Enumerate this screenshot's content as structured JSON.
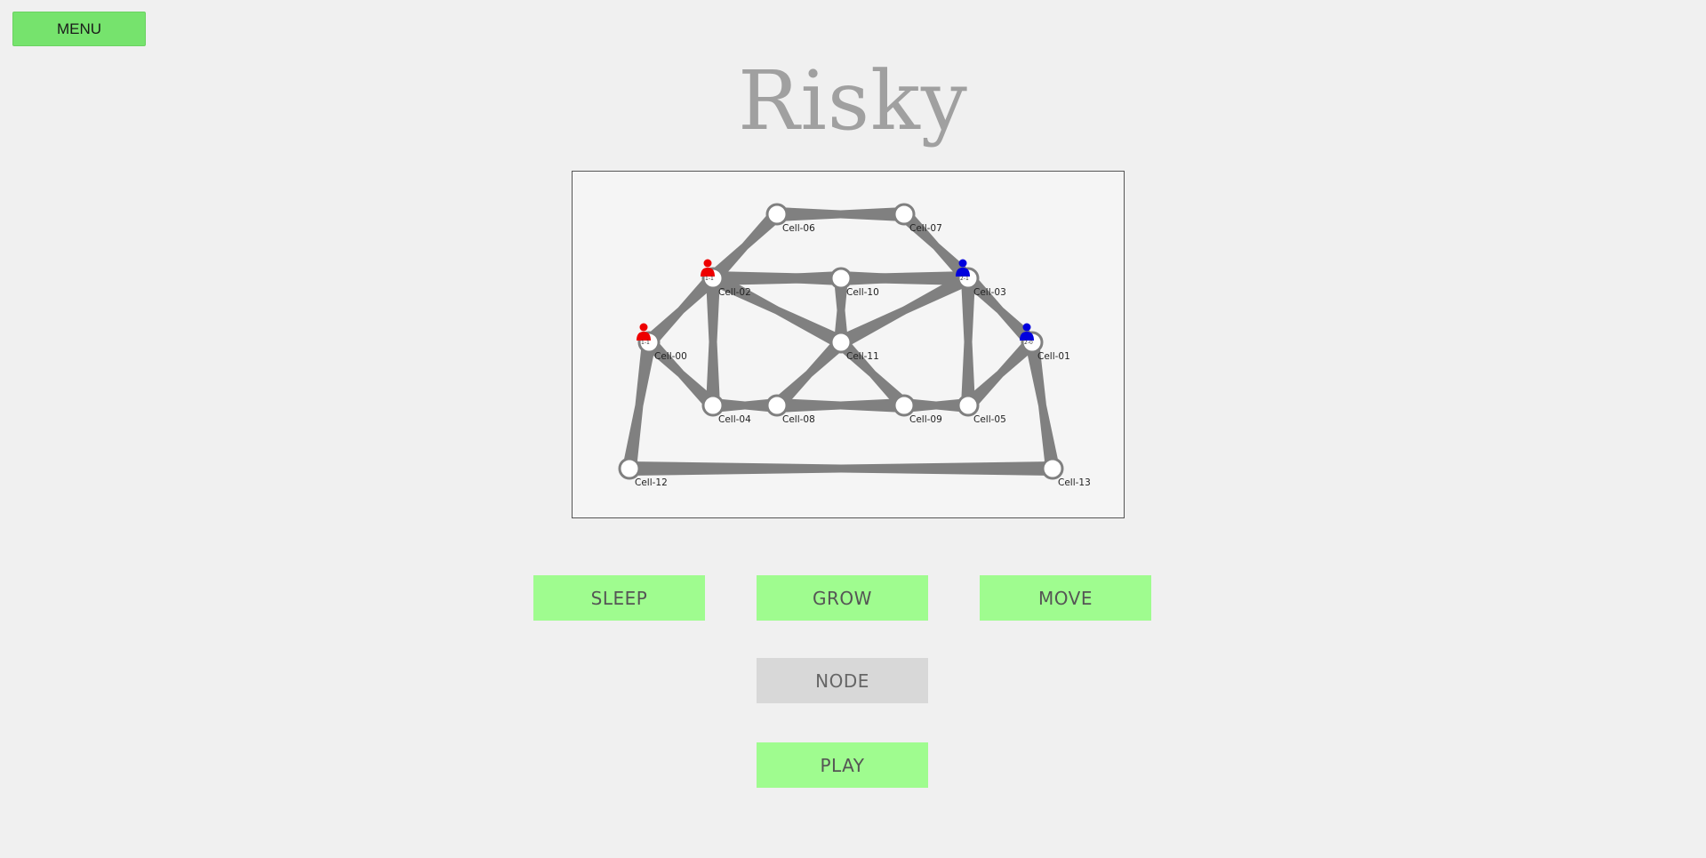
{
  "menu_label": "MENU",
  "title": "Risky",
  "actions": {
    "sleep": "SLEEP",
    "grow": "GROW",
    "move": "MOVE",
    "node": "NODE",
    "play": "PLAY"
  },
  "colors": {
    "button_green": "#9ffc8f",
    "menu_green": "#76e36d",
    "disabled_gray": "#d8d8d8",
    "edge_gray": "#808080",
    "player_red": "#ee0000",
    "player_blue": "#0000dd"
  },
  "cells": [
    {
      "id": "Cell-00",
      "label": "Cell-00"
    },
    {
      "id": "Cell-01",
      "label": "Cell-01"
    },
    {
      "id": "Cell-02",
      "label": "Cell-02"
    },
    {
      "id": "Cell-03",
      "label": "Cell-03"
    },
    {
      "id": "Cell-04",
      "label": "Cell-04"
    },
    {
      "id": "Cell-05",
      "label": "Cell-05"
    },
    {
      "id": "Cell-06",
      "label": "Cell-06"
    },
    {
      "id": "Cell-07",
      "label": "Cell-07"
    },
    {
      "id": "Cell-08",
      "label": "Cell-08"
    },
    {
      "id": "Cell-09",
      "label": "Cell-09"
    },
    {
      "id": "Cell-10",
      "label": "Cell-10"
    },
    {
      "id": "Cell-11",
      "label": "Cell-11"
    },
    {
      "id": "Cell-12",
      "label": "Cell-12"
    },
    {
      "id": "Cell-13",
      "label": "Cell-13"
    }
  ],
  "edges": [
    [
      "Cell-06",
      "Cell-07"
    ],
    [
      "Cell-06",
      "Cell-02"
    ],
    [
      "Cell-07",
      "Cell-03"
    ],
    [
      "Cell-02",
      "Cell-10"
    ],
    [
      "Cell-10",
      "Cell-03"
    ],
    [
      "Cell-02",
      "Cell-03"
    ],
    [
      "Cell-02",
      "Cell-00"
    ],
    [
      "Cell-03",
      "Cell-01"
    ],
    [
      "Cell-02",
      "Cell-11"
    ],
    [
      "Cell-03",
      "Cell-11"
    ],
    [
      "Cell-10",
      "Cell-11"
    ],
    [
      "Cell-02",
      "Cell-04"
    ],
    [
      "Cell-03",
      "Cell-05"
    ],
    [
      "Cell-00",
      "Cell-04"
    ],
    [
      "Cell-01",
      "Cell-05"
    ],
    [
      "Cell-04",
      "Cell-08"
    ],
    [
      "Cell-08",
      "Cell-09"
    ],
    [
      "Cell-09",
      "Cell-05"
    ],
    [
      "Cell-11",
      "Cell-08"
    ],
    [
      "Cell-11",
      "Cell-09"
    ],
    [
      "Cell-00",
      "Cell-12"
    ],
    [
      "Cell-01",
      "Cell-13"
    ],
    [
      "Cell-12",
      "Cell-13"
    ]
  ],
  "units": [
    {
      "cell": "Cell-00",
      "player": "red",
      "label": "1-1"
    },
    {
      "cell": "Cell-02",
      "player": "red",
      "label": "1-1"
    },
    {
      "cell": "Cell-03",
      "player": "blue",
      "label": "2-1"
    },
    {
      "cell": "Cell-01",
      "player": "blue",
      "label": "2-0"
    }
  ]
}
